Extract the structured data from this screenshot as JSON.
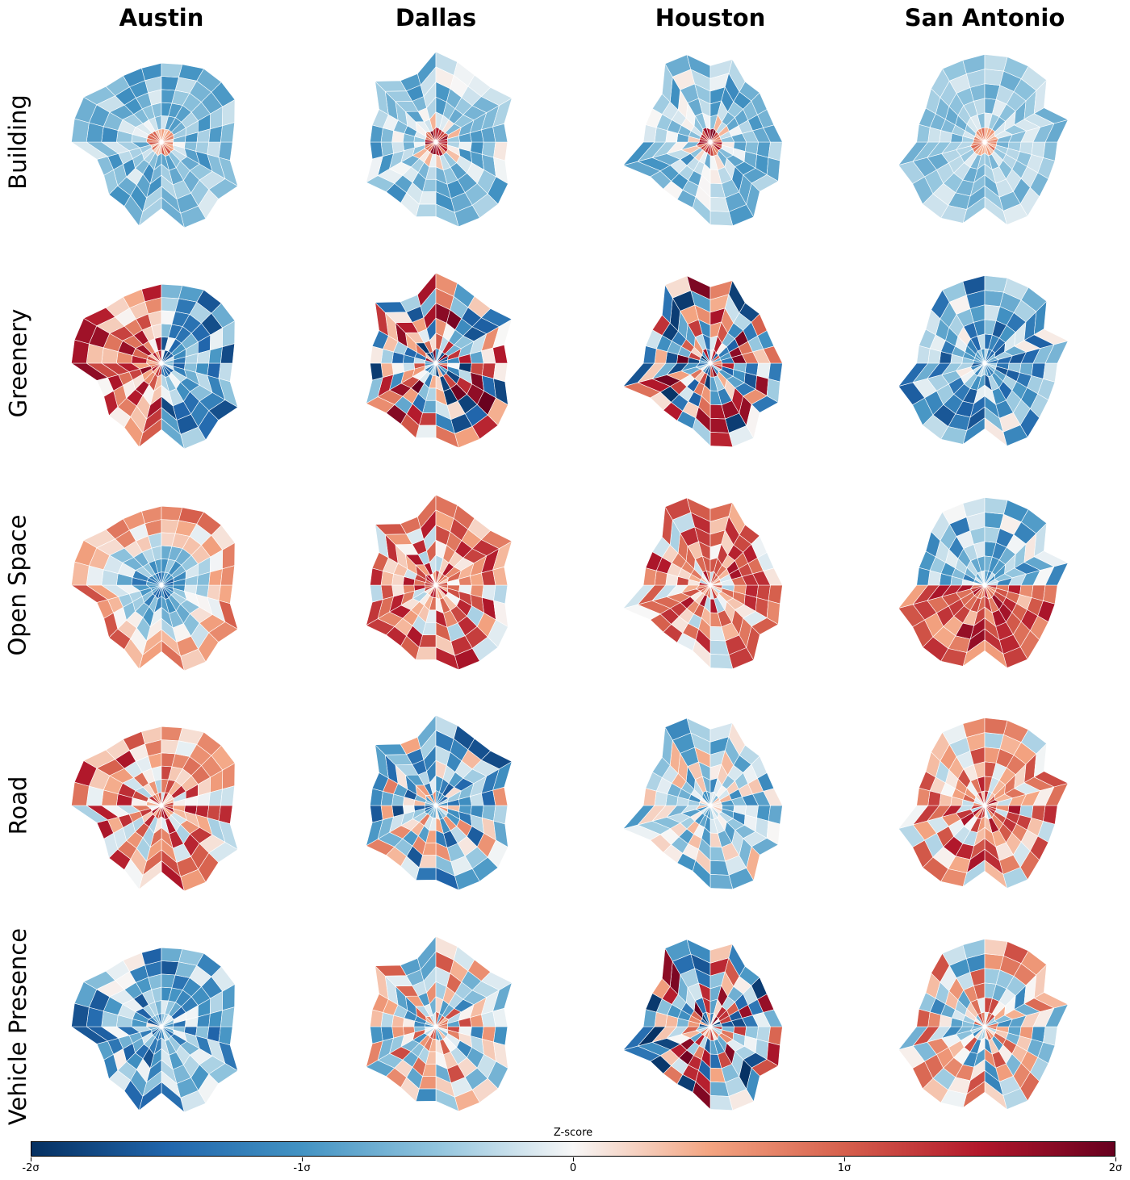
{
  "cities": [
    "Austin",
    "Dallas",
    "Houston",
    "San Antonio"
  ],
  "features": [
    "Building",
    "Greenery",
    "Open Space",
    "Road",
    "Vehicle Presence"
  ],
  "colorbar": {
    "title": "Z-score",
    "ticks": [
      "-2σ",
      "-1σ",
      "0",
      "1σ",
      "2σ"
    ],
    "colormap": [
      "#053061",
      "#2166ac",
      "#4393c3",
      "#92c5de",
      "#f7f7f7",
      "#f4a582",
      "#d6604d",
      "#b2182b",
      "#67001f"
    ],
    "range": [
      -2,
      2
    ]
  },
  "maps": [
    [
      "light-blue",
      "light-blue-mixed",
      "light-blue-mixed",
      "light-blue-pale"
    ],
    [
      "mixed-red-blue",
      "mixed-strong",
      "mixed-strong",
      "blue-dominant"
    ],
    [
      "blue-core-red-edge",
      "red-dominant",
      "red-dominant",
      "blue-north-red-south"
    ],
    [
      "red-dominant",
      "blue-mixed",
      "blue-light",
      "red-dominant"
    ],
    [
      "blue-dominant",
      "mixed-light",
      "mixed-strong",
      "mixed-light"
    ]
  ]
}
